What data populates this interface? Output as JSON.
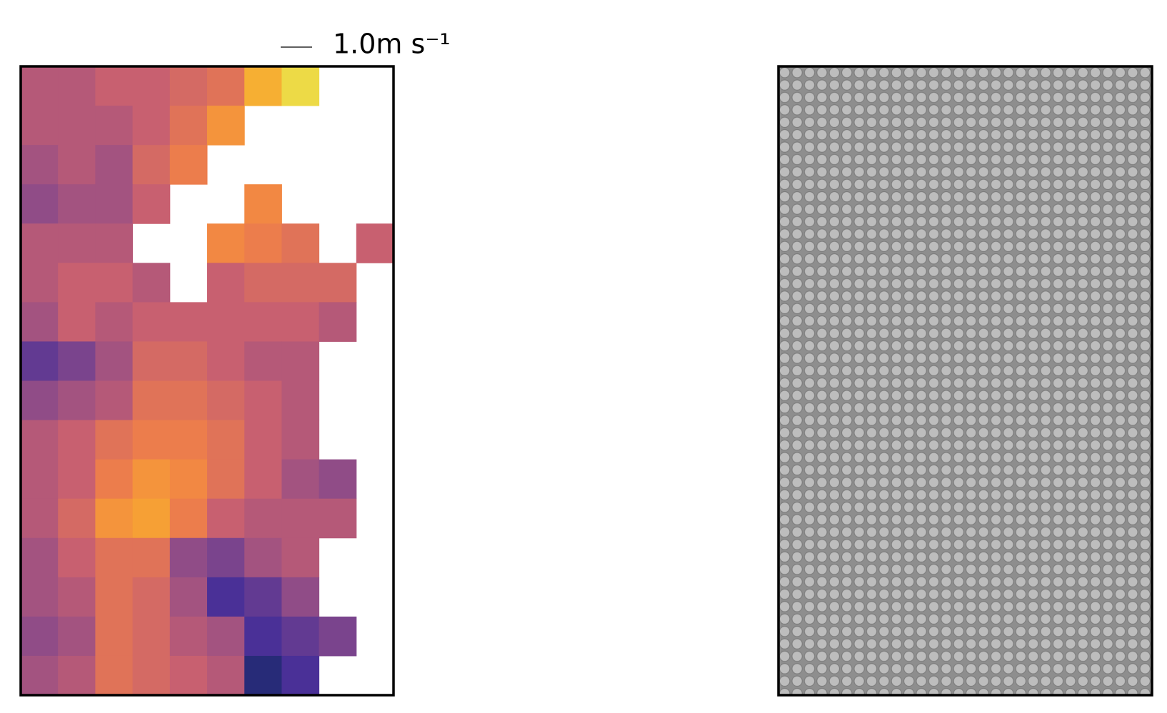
{
  "chart_data": {
    "type": "heatmap",
    "quiver_key": "1.0m s⁻¹",
    "colormap": [
      "#0a2d45",
      "#3a2a9a",
      "#8a4a8a",
      "#c86070",
      "#f08048",
      "#f8a830",
      "#e8f050"
    ],
    "zlim": [
      0,
      1
    ],
    "z": [
      [
        0.45,
        0.45,
        0.5,
        0.5,
        0.55,
        0.6,
        0.85,
        0.95,
        null,
        null
      ],
      [
        0.45,
        0.45,
        0.45,
        0.5,
        0.6,
        0.75,
        null,
        null,
        null,
        null
      ],
      [
        0.4,
        0.45,
        0.4,
        0.55,
        0.65,
        null,
        null,
        null,
        null,
        null
      ],
      [
        0.35,
        0.4,
        0.4,
        0.5,
        null,
        null,
        0.7,
        null,
        null,
        null
      ],
      [
        0.45,
        0.45,
        0.45,
        null,
        null,
        0.7,
        0.65,
        0.6,
        null,
        0.5
      ],
      [
        0.45,
        0.5,
        0.5,
        0.45,
        null,
        0.5,
        0.55,
        0.55,
        0.55,
        null
      ],
      [
        0.4,
        0.5,
        0.45,
        0.5,
        0.5,
        0.5,
        0.5,
        0.5,
        0.45,
        null
      ],
      [
        0.25,
        0.3,
        0.4,
        0.55,
        0.55,
        0.5,
        0.45,
        0.45,
        null,
        null
      ],
      [
        0.35,
        0.4,
        0.45,
        0.6,
        0.6,
        0.55,
        0.5,
        0.45,
        null,
        null
      ],
      [
        0.45,
        0.5,
        0.6,
        0.65,
        0.65,
        0.6,
        0.5,
        0.45,
        null,
        null
      ],
      [
        0.45,
        0.5,
        0.65,
        0.75,
        0.7,
        0.6,
        0.5,
        0.4,
        0.35,
        null
      ],
      [
        0.45,
        0.55,
        0.75,
        0.8,
        0.65,
        0.5,
        0.45,
        0.45,
        0.45,
        null
      ],
      [
        0.4,
        0.5,
        0.6,
        0.6,
        0.35,
        0.3,
        0.4,
        0.45,
        null,
        null
      ],
      [
        0.4,
        0.45,
        0.6,
        0.55,
        0.4,
        0.2,
        0.25,
        0.35,
        null,
        null
      ],
      [
        0.35,
        0.4,
        0.6,
        0.55,
        0.45,
        0.4,
        0.2,
        0.25,
        0.3,
        null
      ],
      [
        0.4,
        0.45,
        0.6,
        0.55,
        0.5,
        0.45,
        0.1,
        0.2,
        null,
        null
      ]
    ]
  }
}
